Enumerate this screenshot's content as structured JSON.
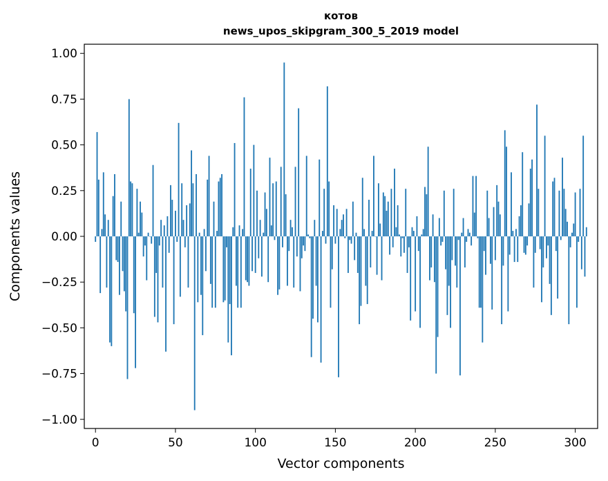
{
  "chart_data": {
    "type": "bar",
    "title": "котов",
    "subtitle": "news_upos_skipgram_300_5_2019 model",
    "xlabel": "Vector components",
    "ylabel": "Components values",
    "xlim": [
      -7,
      314
    ],
    "ylim": [
      -1.05,
      1.05
    ],
    "xticks": [
      0,
      50,
      100,
      150,
      200,
      250,
      300
    ],
    "yticks": [
      1.0,
      0.75,
      0.5,
      0.25,
      0.0,
      -0.25,
      -0.5,
      -0.75,
      -1.0
    ],
    "ytick_labels": [
      "1.00",
      "0.75",
      "0.50",
      "0.25",
      "0.00",
      "−0.25",
      "−0.50",
      "−0.75",
      "−1.00"
    ],
    "bar_color": "#1f77b4",
    "bar_width": 0.8,
    "x_start": 0,
    "values": [
      -0.03,
      0.57,
      0.31,
      -0.31,
      0.04,
      0.35,
      0.12,
      -0.28,
      0.09,
      -0.58,
      -0.6,
      0.22,
      0.34,
      -0.13,
      -0.14,
      -0.32,
      0.19,
      -0.19,
      -0.3,
      -0.41,
      -0.78,
      0.75,
      0.3,
      0.29,
      -0.42,
      -0.72,
      0.26,
      0.02,
      0.19,
      0.13,
      -0.11,
      -0.05,
      -0.24,
      0.02,
      0.0,
      -0.04,
      0.39,
      -0.44,
      -0.2,
      -0.47,
      -0.05,
      0.09,
      -0.28,
      0.06,
      -0.63,
      0.11,
      -0.09,
      0.28,
      0.2,
      -0.48,
      0.14,
      -0.03,
      0.62,
      -0.33,
      0.29,
      0.09,
      -0.06,
      0.17,
      -0.28,
      0.18,
      0.47,
      0.29,
      -0.95,
      0.34,
      -0.36,
      0.02,
      -0.32,
      -0.54,
      0.04,
      -0.19,
      0.31,
      0.44,
      -0.26,
      -0.39,
      0.19,
      -0.39,
      0.03,
      0.3,
      0.32,
      0.34,
      -0.36,
      -0.35,
      -0.06,
      -0.58,
      -0.37,
      -0.65,
      0.05,
      0.51,
      -0.27,
      -0.39,
      0.06,
      -0.39,
      0.04,
      0.76,
      -0.24,
      -0.25,
      -0.27,
      0.37,
      -0.19,
      0.5,
      -0.2,
      0.25,
      -0.12,
      0.09,
      -0.22,
      0.02,
      0.24,
      0.15,
      -0.25,
      0.43,
      0.06,
      0.29,
      -0.02,
      0.3,
      -0.32,
      -0.29,
      0.38,
      -0.06,
      0.95,
      0.23,
      -0.27,
      -0.08,
      0.09,
      0.05,
      -0.28,
      0.38,
      -0.11,
      0.7,
      -0.3,
      -0.12,
      -0.05,
      -0.08,
      0.44,
      0.01,
      -0.01,
      -0.66,
      -0.45,
      0.09,
      -0.27,
      -0.47,
      0.42,
      -0.69,
      0.03,
      0.26,
      -0.04,
      0.82,
      0.3,
      -0.39,
      -0.18,
      0.17,
      -0.04,
      0.15,
      -0.77,
      0.04,
      0.09,
      0.12,
      -0.01,
      0.15,
      -0.2,
      -0.02,
      -0.04,
      0.19,
      -0.13,
      0.02,
      -0.2,
      -0.48,
      -0.38,
      0.32,
      0.04,
      -0.27,
      -0.37,
      0.2,
      -0.17,
      0.03,
      0.44,
      0.0,
      -0.21,
      0.29,
      0.07,
      -0.24,
      0.24,
      0.22,
      0.14,
      0.19,
      -0.1,
      0.26,
      -0.06,
      0.37,
      0.05,
      0.17,
      0.01,
      -0.11,
      -0.01,
      -0.09,
      0.26,
      -0.2,
      -0.06,
      -0.46,
      0.05,
      0.03,
      -0.41,
      0.11,
      -0.08,
      -0.5,
      0.01,
      0.04,
      0.27,
      0.23,
      0.49,
      -0.24,
      -0.17,
      0.12,
      -0.25,
      -0.75,
      -0.55,
      0.1,
      -0.05,
      -0.03,
      0.25,
      -0.18,
      -0.43,
      -0.27,
      -0.5,
      -0.13,
      0.26,
      -0.16,
      -0.28,
      -0.02,
      -0.76,
      0.02,
      0.1,
      -0.17,
      -0.03,
      0.04,
      0.02,
      -0.05,
      0.33,
      0.13,
      0.33,
      -0.01,
      -0.39,
      -0.39,
      -0.58,
      -0.08,
      -0.21,
      0.25,
      0.1,
      -0.15,
      -0.4,
      0.16,
      -0.13,
      0.28,
      0.19,
      0.12,
      -0.48,
      -0.16,
      0.58,
      0.49,
      -0.41,
      -0.1,
      0.35,
      0.03,
      -0.14,
      0.04,
      -0.14,
      0.11,
      0.17,
      0.46,
      -0.09,
      -0.1,
      -0.05,
      0.18,
      0.37,
      0.42,
      -0.28,
      -0.09,
      0.72,
      0.26,
      -0.07,
      -0.36,
      -0.17,
      0.55,
      -0.12,
      -0.05,
      -0.26,
      -0.43,
      0.3,
      0.32,
      -0.08,
      -0.34,
      0.25,
      -0.02,
      0.43,
      0.26,
      0.15,
      0.08,
      -0.48,
      -0.06,
      0.02,
      0.07,
      0.24,
      -0.39,
      -0.03,
      0.26,
      -0.18,
      0.55,
      -0.22,
      0.05
    ]
  }
}
